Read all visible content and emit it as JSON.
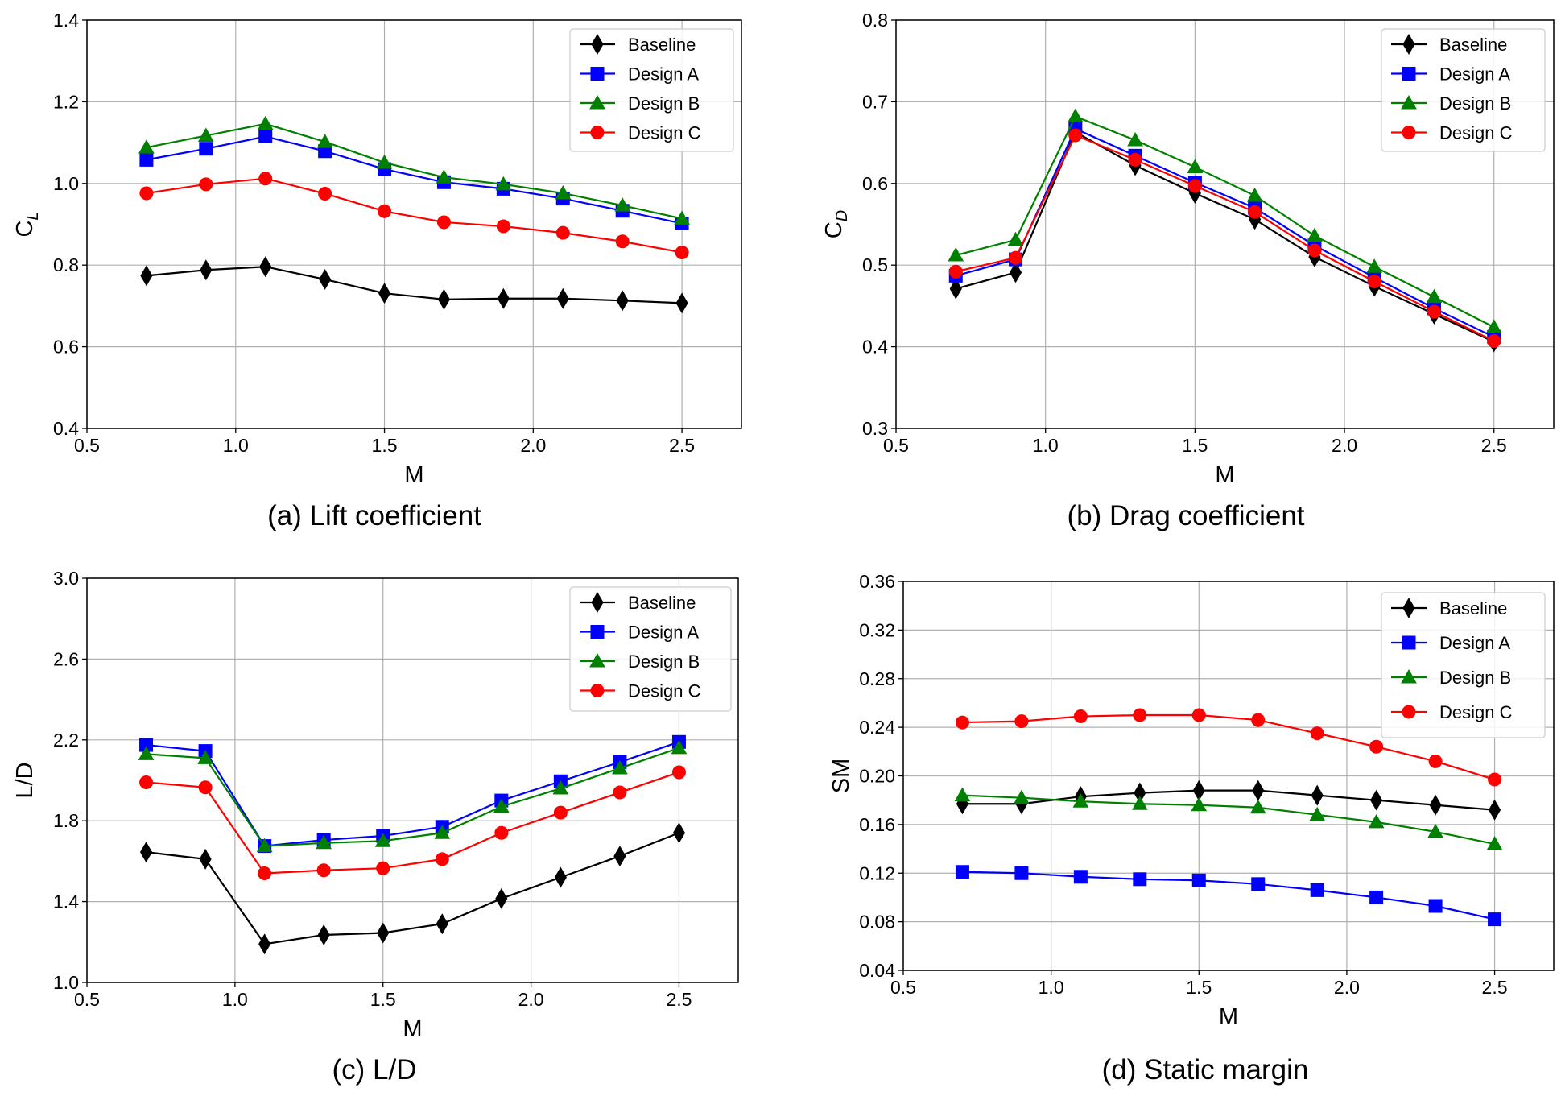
{
  "series_styles": [
    {
      "name": "Baseline",
      "color": "#000000",
      "marker": "diamond"
    },
    {
      "name": "Design A",
      "color": "#0000ff",
      "marker": "square"
    },
    {
      "name": "Design B",
      "color": "#008000",
      "marker": "triangle"
    },
    {
      "name": "Design C",
      "color": "#ff0000",
      "marker": "circle"
    }
  ],
  "chart_data": [
    {
      "type": "line",
      "caption": "(a) Lift coefficient",
      "xlabel": "M",
      "ylabel": "C",
      "ylabel_sub": "L",
      "xlim": [
        0.5,
        2.7
      ],
      "ylim": [
        0.4,
        1.4
      ],
      "xticks": [
        "0.5",
        "1.0",
        "1.5",
        "2.0",
        "2.5"
      ],
      "yticks": [
        "0.4",
        "0.6",
        "0.8",
        "1.0",
        "1.2",
        "1.4"
      ],
      "legend_position": "top-right",
      "x": [
        0.7,
        0.9,
        1.1,
        1.3,
        1.5,
        1.7,
        1.9,
        2.1,
        2.3,
        2.5
      ],
      "series": [
        {
          "name": "Baseline",
          "values": [
            0.774,
            0.788,
            0.796,
            0.765,
            0.731,
            0.716,
            0.718,
            0.718,
            0.713,
            0.707
          ]
        },
        {
          "name": "Design A",
          "values": [
            1.058,
            1.085,
            1.115,
            1.079,
            1.035,
            1.003,
            0.987,
            0.963,
            0.933,
            0.902
          ]
        },
        {
          "name": "Design B",
          "values": [
            1.088,
            1.117,
            1.146,
            1.102,
            1.051,
            1.015,
            0.998,
            0.976,
            0.946,
            0.914
          ]
        },
        {
          "name": "Design C",
          "values": [
            0.976,
            0.998,
            1.012,
            0.975,
            0.932,
            0.905,
            0.895,
            0.879,
            0.858,
            0.831
          ]
        }
      ]
    },
    {
      "type": "line",
      "caption": "(b) Drag coefficient",
      "xlabel": "M",
      "ylabel": "C",
      "ylabel_sub": "D",
      "xlim": [
        0.5,
        2.7
      ],
      "ylim": [
        0.3,
        0.8
      ],
      "xticks": [
        "0.5",
        "1.0",
        "1.5",
        "2.0",
        "2.5"
      ],
      "yticks": [
        "0.3",
        "0.4",
        "0.5",
        "0.6",
        "0.7",
        "0.8"
      ],
      "legend_position": "top-right",
      "x": [
        0.7,
        0.9,
        1.1,
        1.3,
        1.5,
        1.7,
        1.9,
        2.1,
        2.3,
        2.5
      ],
      "series": [
        {
          "name": "Baseline",
          "values": [
            0.471,
            0.491,
            0.663,
            0.622,
            0.588,
            0.556,
            0.51,
            0.474,
            0.44,
            0.406
          ]
        },
        {
          "name": "Design A",
          "values": [
            0.487,
            0.507,
            0.667,
            0.634,
            0.601,
            0.57,
            0.524,
            0.485,
            0.447,
            0.412
          ]
        },
        {
          "name": "Design B",
          "values": [
            0.512,
            0.531,
            0.682,
            0.653,
            0.62,
            0.585,
            0.536,
            0.498,
            0.461,
            0.424
          ]
        },
        {
          "name": "Design C",
          "values": [
            0.492,
            0.509,
            0.659,
            0.629,
            0.597,
            0.565,
            0.518,
            0.48,
            0.443,
            0.407
          ]
        }
      ]
    },
    {
      "type": "line",
      "caption": "(c) L/D",
      "xlabel": "M",
      "ylabel": "L/D",
      "ylabel_sub": "",
      "xlim": [
        0.5,
        2.7
      ],
      "ylim": [
        1.0,
        3.0
      ],
      "xticks": [
        "0.5",
        "1.0",
        "1.5",
        "2.0",
        "2.5"
      ],
      "yticks": [
        "1.0",
        "1.4",
        "1.8",
        "2.2",
        "2.6",
        "3.0"
      ],
      "legend_position": "top-right",
      "x": [
        0.7,
        0.9,
        1.1,
        1.3,
        1.5,
        1.7,
        1.9,
        2.1,
        2.3,
        2.5
      ],
      "series": [
        {
          "name": "Baseline",
          "values": [
            1.645,
            1.61,
            1.19,
            1.235,
            1.245,
            1.29,
            1.415,
            1.52,
            1.625,
            1.74
          ]
        },
        {
          "name": "Design A",
          "values": [
            2.175,
            2.145,
            1.675,
            1.705,
            1.725,
            1.77,
            1.9,
            1.995,
            2.09,
            2.19
          ]
        },
        {
          "name": "Design B",
          "values": [
            2.13,
            2.11,
            1.675,
            1.69,
            1.7,
            1.74,
            1.87,
            1.96,
            2.06,
            2.16
          ]
        },
        {
          "name": "Design C",
          "values": [
            1.99,
            1.965,
            1.54,
            1.555,
            1.565,
            1.61,
            1.74,
            1.84,
            1.94,
            2.04
          ]
        }
      ]
    },
    {
      "type": "line",
      "caption": "(d) Static margin",
      "xlabel": "M",
      "ylabel": "SM",
      "ylabel_sub": "",
      "xlim": [
        0.5,
        2.7
      ],
      "ylim": [
        0.04,
        0.36
      ],
      "xticks": [
        "0.5",
        "1.0",
        "1.5",
        "2.0",
        "2.5"
      ],
      "yticks": [
        "0.04",
        "0.08",
        "0.12",
        "0.16",
        "0.20",
        "0.24",
        "0.28",
        "0.32",
        "0.36"
      ],
      "legend_position": "top-right",
      "x": [
        0.7,
        0.9,
        1.1,
        1.3,
        1.5,
        1.7,
        1.9,
        2.1,
        2.3,
        2.5
      ],
      "series": [
        {
          "name": "Baseline",
          "values": [
            0.177,
            0.177,
            0.183,
            0.186,
            0.188,
            0.188,
            0.184,
            0.18,
            0.176,
            0.172
          ]
        },
        {
          "name": "Design A",
          "values": [
            0.121,
            0.12,
            0.117,
            0.115,
            0.114,
            0.111,
            0.106,
            0.1,
            0.093,
            0.082
          ]
        },
        {
          "name": "Design B",
          "values": [
            0.184,
            0.182,
            0.179,
            0.177,
            0.176,
            0.174,
            0.168,
            0.162,
            0.154,
            0.144
          ]
        },
        {
          "name": "Design C",
          "values": [
            0.244,
            0.245,
            0.249,
            0.25,
            0.25,
            0.246,
            0.235,
            0.224,
            0.212,
            0.197
          ]
        }
      ]
    }
  ]
}
